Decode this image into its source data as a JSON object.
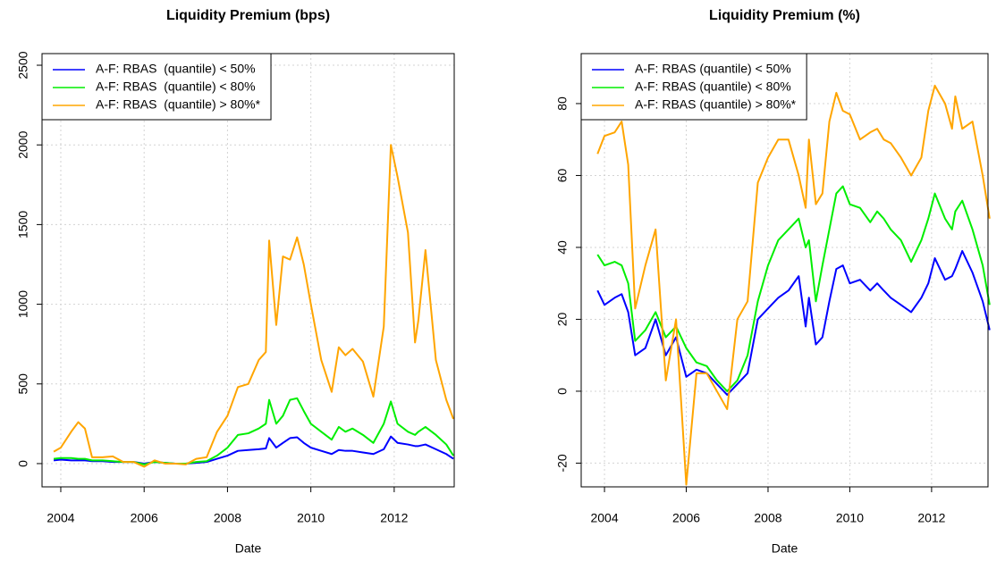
{
  "chart_data": [
    {
      "type": "line",
      "title": "Liquidity Premium (bps)",
      "x_label": "Date",
      "x": [
        2003.83,
        2004.0,
        2004.25,
        2004.42,
        2004.58,
        2004.75,
        2005.0,
        2005.25,
        2005.5,
        2005.75,
        2006.0,
        2006.25,
        2006.5,
        2006.75,
        2007.0,
        2007.25,
        2007.5,
        2007.75,
        2008.0,
        2008.25,
        2008.5,
        2008.75,
        2008.92,
        2009.0,
        2009.17,
        2009.33,
        2009.5,
        2009.67,
        2009.83,
        2010.0,
        2010.25,
        2010.5,
        2010.67,
        2010.83,
        2011.0,
        2011.25,
        2011.5,
        2011.75,
        2011.92,
        2012.08,
        2012.33,
        2012.5,
        2012.58,
        2012.75,
        2013.0,
        2013.25,
        2013.42
      ],
      "series": [
        {
          "name": "A-F: RBAS  (quantile) < 50%",
          "color": "#0000ff",
          "values": [
            20,
            25,
            20,
            20,
            20,
            15,
            15,
            10,
            10,
            10,
            0,
            10,
            5,
            0,
            0,
            5,
            10,
            30,
            50,
            80,
            85,
            90,
            95,
            160,
            100,
            130,
            160,
            165,
            130,
            100,
            80,
            60,
            85,
            80,
            80,
            70,
            60,
            90,
            170,
            130,
            120,
            110,
            110,
            120,
            90,
            60,
            30
          ]
        },
        {
          "name": "A-F: RBAS  (quantile) < 80%",
          "color": "#00ee00",
          "values": [
            30,
            35,
            35,
            30,
            30,
            20,
            20,
            15,
            10,
            10,
            -5,
            10,
            5,
            0,
            0,
            10,
            15,
            50,
            100,
            180,
            190,
            220,
            250,
            400,
            250,
            300,
            400,
            410,
            330,
            250,
            200,
            150,
            230,
            200,
            220,
            180,
            130,
            250,
            390,
            250,
            200,
            180,
            200,
            230,
            180,
            120,
            50
          ]
        },
        {
          "name": "A-F: RBAS  (quantile) > 80%*",
          "color": "#ffa500",
          "values": [
            75,
            100,
            200,
            260,
            220,
            40,
            40,
            45,
            10,
            10,
            -20,
            20,
            0,
            0,
            -5,
            30,
            40,
            200,
            300,
            480,
            500,
            650,
            700,
            1400,
            870,
            1300,
            1280,
            1420,
            1250,
            1000,
            650,
            450,
            730,
            680,
            720,
            640,
            420,
            860,
            2000,
            1800,
            1450,
            760,
            900,
            1340,
            650,
            400,
            280
          ]
        }
      ],
      "xlim": [
        2003.55,
        2013.44
      ],
      "xticks": [
        2004,
        2006,
        2008,
        2010,
        2012
      ],
      "ylim": [
        -146,
        2573
      ],
      "yticks": [
        0,
        500,
        1000,
        1500,
        2000,
        2500
      ],
      "grid": true,
      "legend": "top-left"
    },
    {
      "type": "line",
      "title": "Liquidity Premium (%)",
      "x_label": "Date",
      "x": [
        2003.83,
        2004.0,
        2004.25,
        2004.42,
        2004.58,
        2004.75,
        2005.0,
        2005.25,
        2005.5,
        2005.75,
        2006.0,
        2006.25,
        2006.5,
        2006.75,
        2007.0,
        2007.25,
        2007.5,
        2007.75,
        2008.0,
        2008.25,
        2008.5,
        2008.75,
        2008.92,
        2009.0,
        2009.17,
        2009.33,
        2009.5,
        2009.67,
        2009.83,
        2010.0,
        2010.25,
        2010.5,
        2010.67,
        2010.83,
        2011.0,
        2011.25,
        2011.5,
        2011.75,
        2011.92,
        2012.08,
        2012.33,
        2012.5,
        2012.58,
        2012.75,
        2013.0,
        2013.25,
        2013.42
      ],
      "series": [
        {
          "name": "A-F: RBAS (quantile) < 50%",
          "color": "#0000ff",
          "values": [
            28,
            24,
            26,
            27,
            22,
            10,
            12,
            20,
            10,
            15,
            4,
            6,
            5,
            2,
            -1,
            2,
            5,
            20,
            23,
            26,
            28,
            32,
            18,
            26,
            13,
            15,
            25,
            34,
            35,
            30,
            31,
            28,
            30,
            28,
            26,
            24,
            22,
            26,
            30,
            37,
            31,
            32,
            34,
            39,
            33,
            25,
            17
          ]
        },
        {
          "name": "A-F: RBAS (quantile) < 80%",
          "color": "#00ee00",
          "values": [
            38,
            35,
            36,
            35,
            30,
            14,
            17,
            22,
            15,
            18,
            12,
            8,
            7,
            3,
            0,
            3,
            10,
            25,
            35,
            42,
            45,
            48,
            40,
            42,
            25,
            35,
            45,
            55,
            57,
            52,
            51,
            47,
            50,
            48,
            45,
            42,
            36,
            42,
            48,
            55,
            48,
            45,
            50,
            53,
            45,
            35,
            24
          ]
        },
        {
          "name": "A-F: RBAS (quantile) > 80%*",
          "color": "#ffa500",
          "values": [
            66,
            71,
            72,
            75,
            63,
            23,
            35,
            45,
            3,
            20,
            -26,
            5,
            5,
            0,
            -5,
            20,
            25,
            58,
            65,
            70,
            70,
            60,
            51,
            70,
            52,
            55,
            75,
            83,
            78,
            77,
            70,
            72,
            73,
            70,
            69,
            65,
            60,
            65,
            78,
            85,
            80,
            73,
            82,
            73,
            75,
            60,
            48
          ]
        }
      ],
      "xlim": [
        2003.43,
        2013.38
      ],
      "xticks": [
        2004,
        2006,
        2008,
        2010,
        2012
      ],
      "ylim": [
        -26.6,
        93.9
      ],
      "yticks": [
        -20,
        0,
        20,
        40,
        60,
        80
      ],
      "grid": true,
      "legend": "top-left"
    }
  ]
}
